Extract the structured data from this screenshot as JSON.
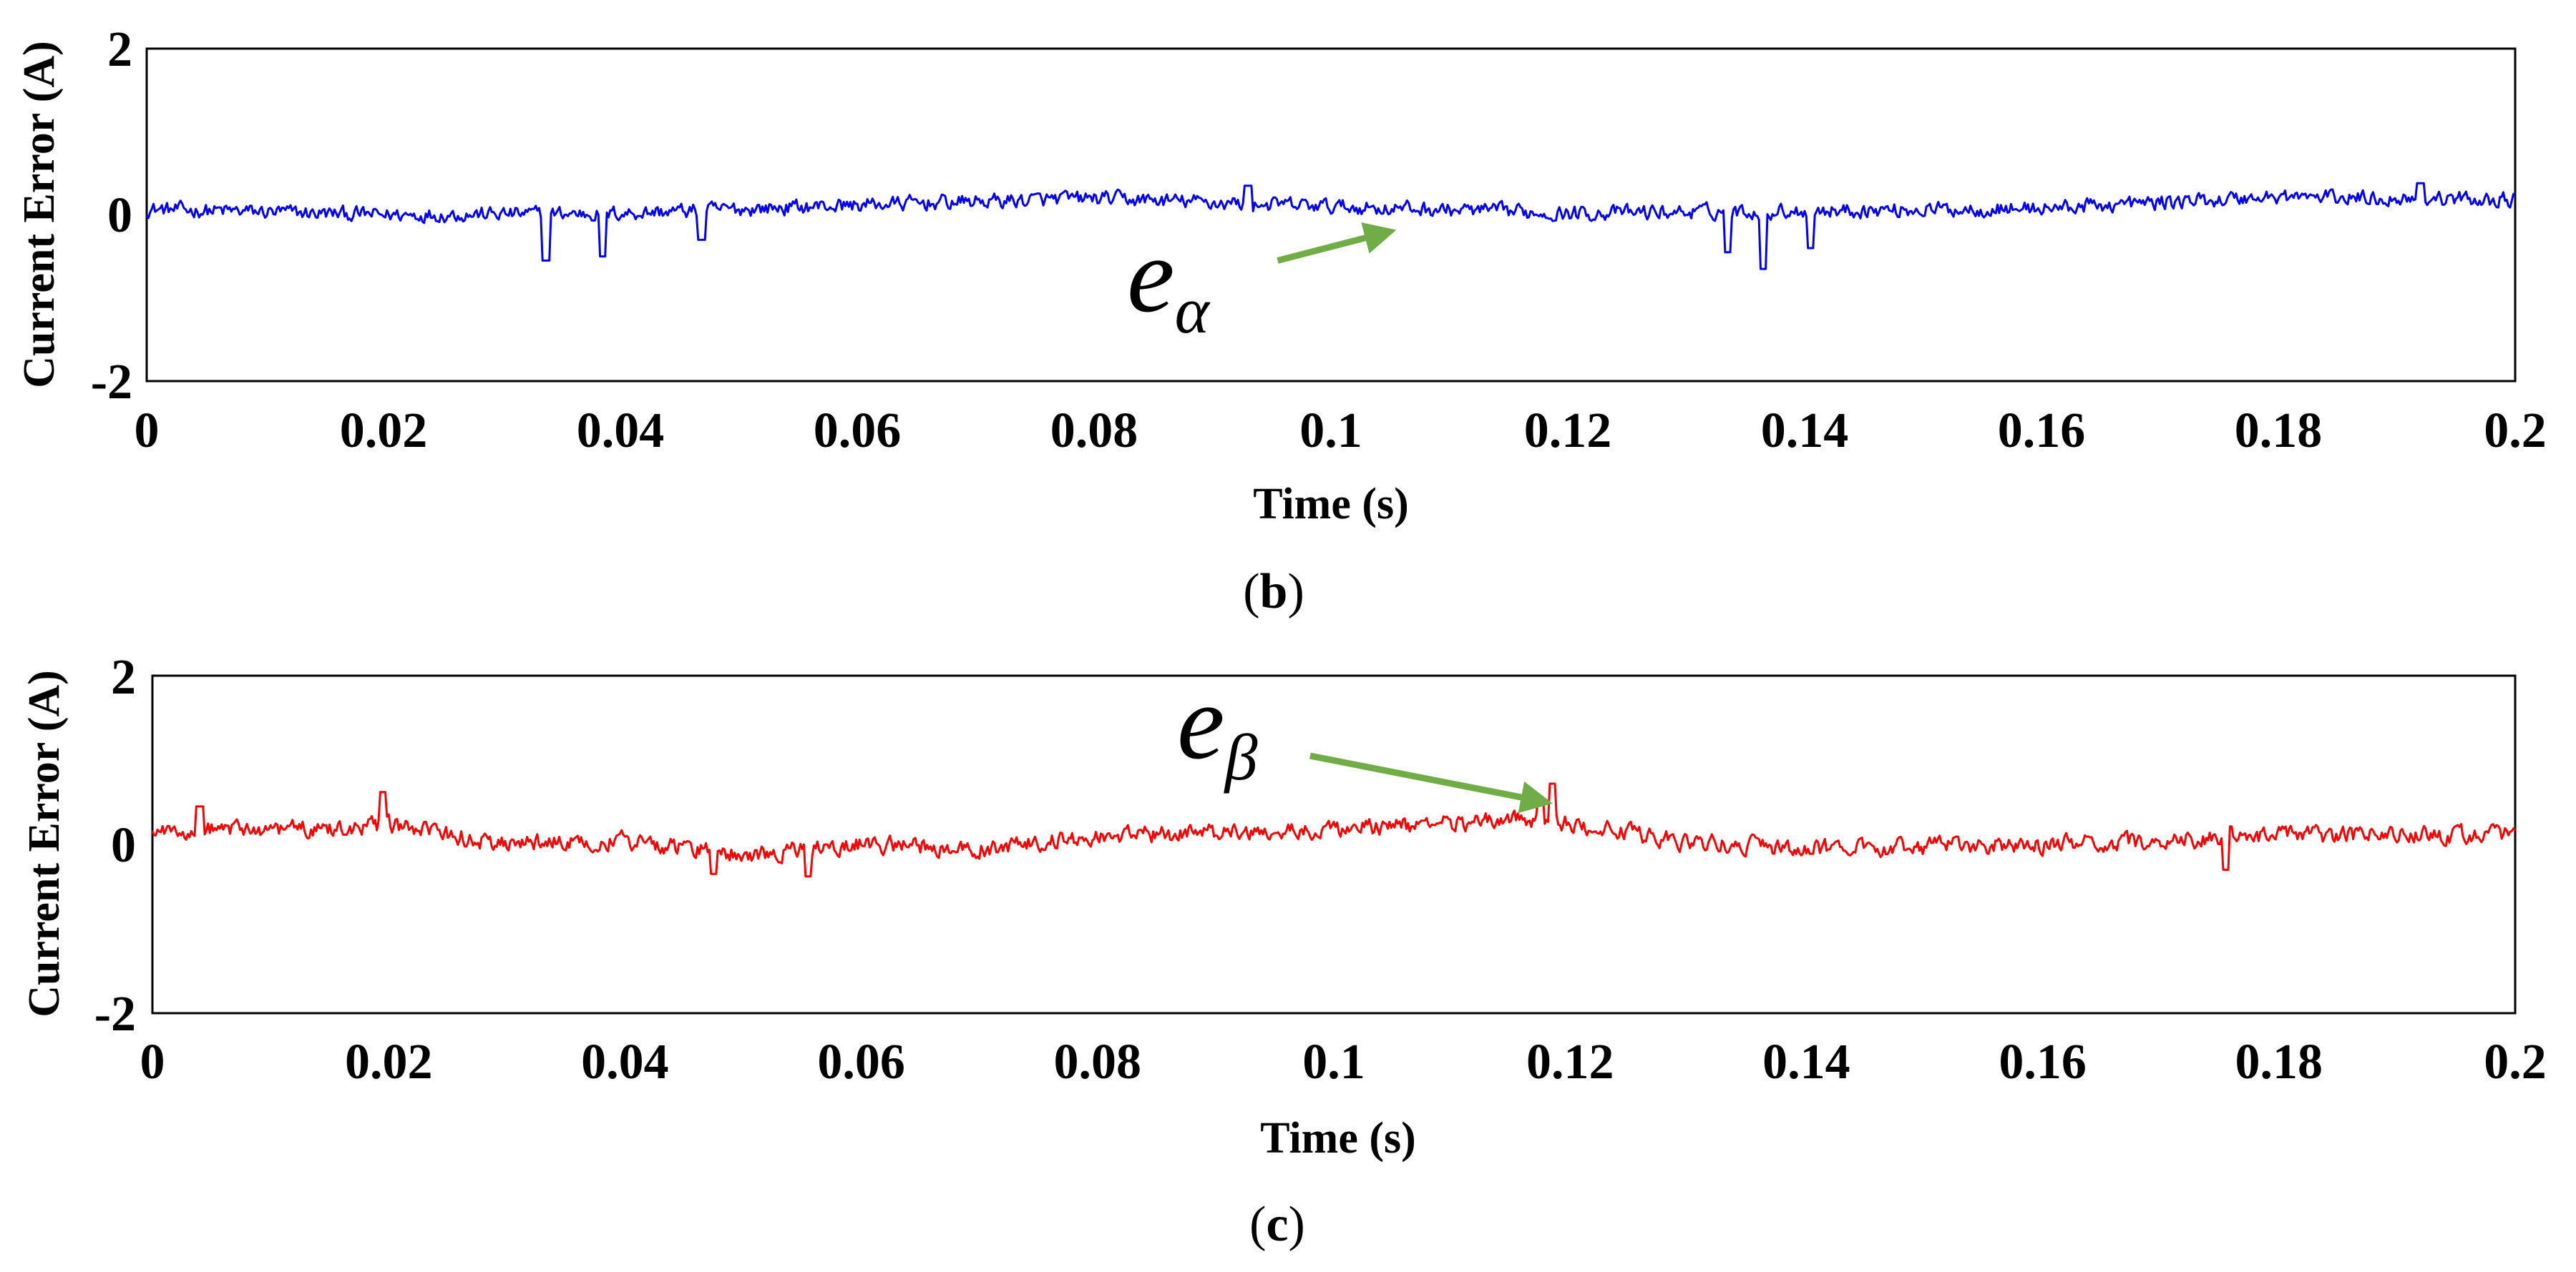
{
  "chart_data": [
    {
      "type": "line",
      "caption": "(b)",
      "xlabel": "Time (s)",
      "ylabel": "Current Error (A)",
      "xlim": [
        0,
        0.2
      ],
      "ylim": [
        -2,
        2
      ],
      "xticks": [
        "0",
        "0.02",
        "0.04",
        "0.06",
        "0.08",
        "0.1",
        "0.12",
        "0.14",
        "0.16",
        "0.18",
        "0.2"
      ],
      "yticks": [
        "2",
        "0",
        "-2"
      ],
      "grid": false,
      "series": [
        {
          "name": "e_alpha",
          "color": "#0000ff",
          "baseline": [
            [
              0,
              0.07
            ],
            [
              0.02,
              0.0
            ],
            [
              0.04,
              0.02
            ],
            [
              0.06,
              0.12
            ],
            [
              0.08,
              0.2
            ],
            [
              0.1,
              0.1
            ],
            [
              0.12,
              0.02
            ],
            [
              0.14,
              0.05
            ],
            [
              0.16,
              0.08
            ],
            [
              0.18,
              0.22
            ],
            [
              0.2,
              0.18
            ]
          ],
          "noise_amplitude": 0.14,
          "spikes": [
            [
              0.0337,
              -0.55
            ],
            [
              0.0385,
              -0.5
            ],
            [
              0.0468,
              -0.3
            ],
            [
              0.093,
              0.35
            ],
            [
              0.1335,
              -0.45
            ],
            [
              0.1365,
              -0.65
            ],
            [
              0.1405,
              -0.4
            ],
            [
              0.192,
              0.38
            ]
          ]
        }
      ],
      "annotation": {
        "symbol": "e",
        "subscript": "α",
        "arrow_from": [
          0.0955,
          -0.55
        ],
        "arrow_to": [
          0.105,
          -0.2
        ]
      }
    },
    {
      "type": "line",
      "caption": "(c)",
      "xlabel": "Time (s)",
      "ylabel": "Current Error (A)",
      "xlim": [
        0,
        0.2
      ],
      "ylim": [
        -2,
        2
      ],
      "xticks": [
        "0",
        "0.02",
        "0.04",
        "0.06",
        "0.08",
        "0.1",
        "0.12",
        "0.14",
        "0.16",
        "0.18",
        "0.2"
      ],
      "yticks": [
        "2",
        "0",
        "-2"
      ],
      "grid": false,
      "series": [
        {
          "name": "e_beta",
          "color": "#ff0000",
          "baseline": [
            [
              0,
              0.15
            ],
            [
              0.02,
              0.22
            ],
            [
              0.03,
              0.0
            ],
            [
              0.04,
              0.05
            ],
            [
              0.05,
              -0.12
            ],
            [
              0.06,
              0.0
            ],
            [
              0.07,
              -0.05
            ],
            [
              0.08,
              0.1
            ],
            [
              0.1,
              0.18
            ],
            [
              0.118,
              0.3
            ],
            [
              0.13,
              0.02
            ],
            [
              0.14,
              -0.05
            ],
            [
              0.16,
              0.0
            ],
            [
              0.18,
              0.1
            ],
            [
              0.2,
              0.12
            ]
          ],
          "noise_amplitude": 0.16,
          "spikes": [
            [
              0.0195,
              0.62
            ],
            [
              0.004,
              0.45
            ],
            [
              0.0475,
              -0.35
            ],
            [
              0.0555,
              -0.38
            ],
            [
              0.1185,
              0.72
            ],
            [
              0.1175,
              0.55
            ],
            [
              0.1755,
              -0.3
            ]
          ]
        }
      ],
      "annotation": {
        "symbol": "e",
        "subscript": "β",
        "arrow_from": [
          0.098,
          1.05
        ],
        "arrow_to": [
          0.118,
          0.5
        ]
      }
    }
  ]
}
